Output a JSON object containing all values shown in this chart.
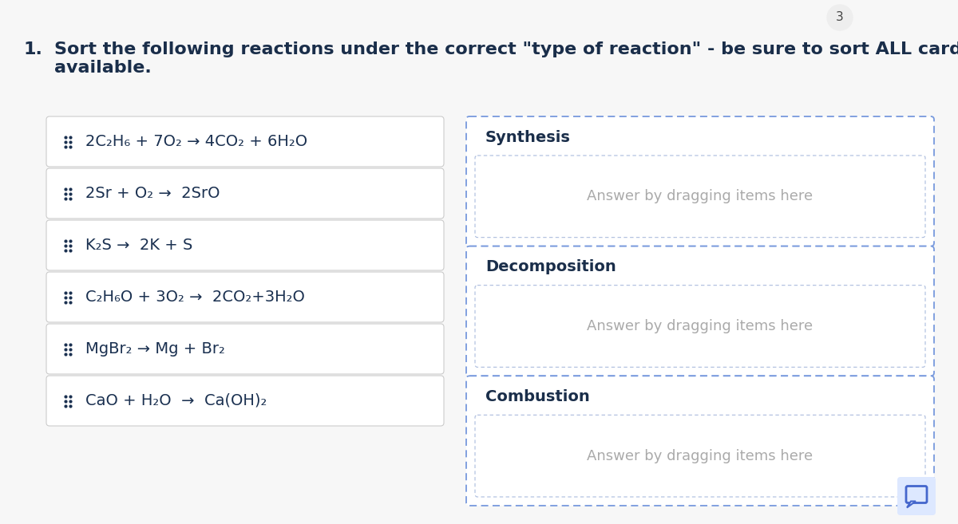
{
  "bg_color": "#f7f7f7",
  "white": "#ffffff",
  "title_num": "1.",
  "title_text": "Sort the following reactions under the correct \"type of reaction\" - be sure to sort ALL cards\navailable.",
  "title_color": "#1a2e4a",
  "title_fontsize": 16,
  "card_bg": "#ffffff",
  "card_border": "#cccccc",
  "card_text_color": "#1a3050",
  "card_fontsize": 14,
  "drag_icon_color": "#1a3050",
  "reactions": [
    "2C₂H₆ + 7O₂ → 4CO₂ + 6H₂O",
    "2Sr + O₂ →  2SrO",
    "K₂S →  2K + S",
    "C₂H₆O + 3O₂ →  2CO₂+3H₂O",
    "MgBr₂ → Mg + Br₂",
    "CaO + H₂O  →  Ca(OH)₂"
  ],
  "categories": [
    "Synthesis",
    "Decomposition",
    "Combustion"
  ],
  "category_label_color": "#1a2e4a",
  "category_label_fontsize": 14,
  "answer_placeholder": "Answer by dragging items here",
  "answer_placeholder_color": "#aaaaaa",
  "answer_placeholder_fontsize": 13,
  "drop_border_color": "#7799dd",
  "drop_bg_color": "#ffffff",
  "page_num": "3",
  "page_num_color": "#444444",
  "page_num_fontsize": 11,
  "comment_icon_color": "#4466cc",
  "comment_icon_bg": "#dde8ff"
}
